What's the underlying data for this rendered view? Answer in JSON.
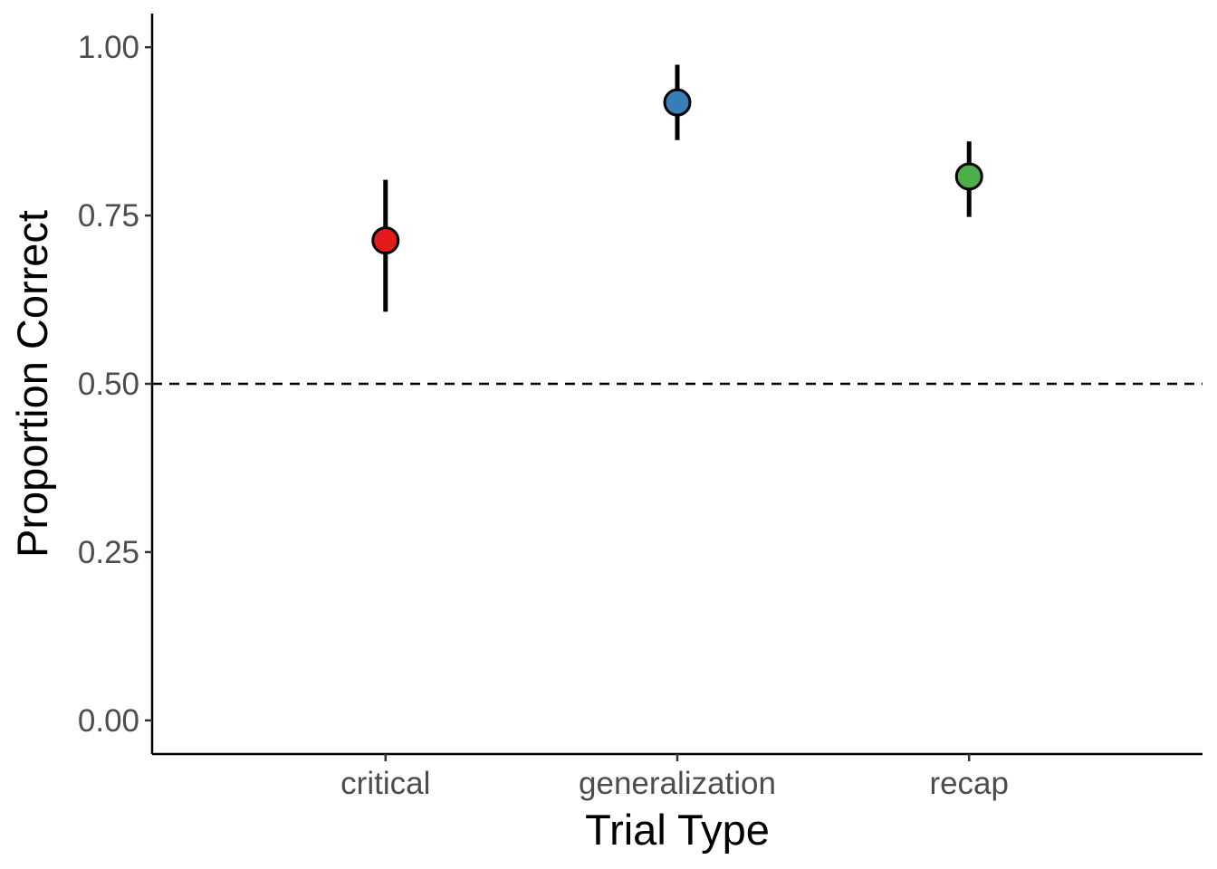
{
  "chart_data": {
    "type": "scatter",
    "title": "",
    "xlabel": "Trial Type",
    "ylabel": "Proportion Correct",
    "categories": [
      "critical",
      "generalization",
      "recap"
    ],
    "points": [
      {
        "category": "critical",
        "y": 0.713,
        "ymin": 0.607,
        "ymax": 0.803,
        "color": "#e41a1c"
      },
      {
        "category": "generalization",
        "y": 0.918,
        "ymin": 0.862,
        "ymax": 0.974,
        "color": "#377eb8"
      },
      {
        "category": "recap",
        "y": 0.808,
        "ymin": 0.748,
        "ymax": 0.86,
        "color": "#4daf4a"
      }
    ],
    "ylim": [
      -0.05,
      1.05
    ],
    "yticks": [
      0.0,
      0.25,
      0.5,
      0.75,
      1.0
    ],
    "ytick_labels": [
      "0.00",
      "0.25",
      "0.50",
      "0.75",
      "1.00"
    ],
    "reference_line": {
      "y": 0.5,
      "style": "dashed"
    },
    "grid": false,
    "legend": "none"
  }
}
